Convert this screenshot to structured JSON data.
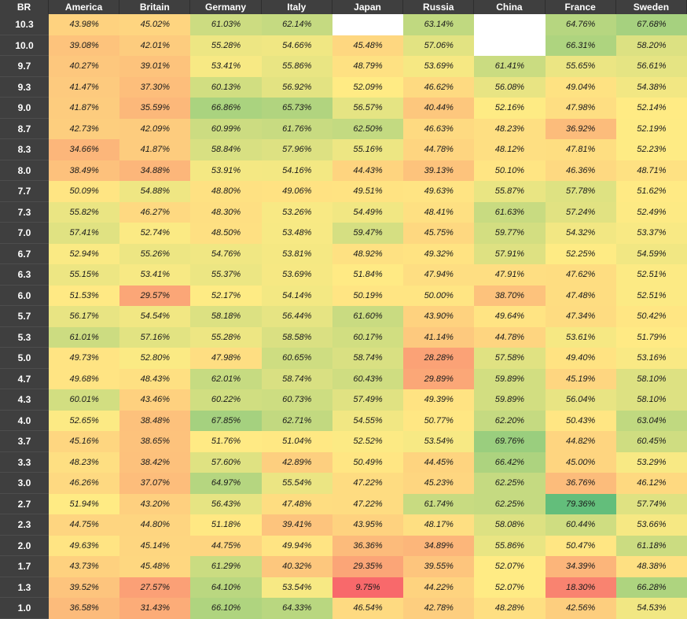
{
  "chart_data": {
    "type": "heatmap",
    "corner_label": "BR",
    "columns": [
      "America",
      "Britain",
      "Germany",
      "Italy",
      "Japan",
      "Russia",
      "China",
      "France",
      "Sweden"
    ],
    "rows": [
      "10.3",
      "10.0",
      "9.7",
      "9.3",
      "9.0",
      "8.7",
      "8.3",
      "8.0",
      "7.7",
      "7.3",
      "7.0",
      "6.7",
      "6.3",
      "6.0",
      "5.7",
      "5.3",
      "5.0",
      "4.7",
      "4.3",
      "4.0",
      "3.7",
      "3.3",
      "3.0",
      "2.7",
      "2.3",
      "2.0",
      "1.7",
      "1.3",
      "1.0"
    ],
    "values": [
      [
        43.98,
        45.02,
        61.03,
        62.14,
        null,
        63.14,
        null,
        64.76,
        67.68
      ],
      [
        39.08,
        42.01,
        55.28,
        54.66,
        45.48,
        57.06,
        null,
        66.31,
        58.2
      ],
      [
        40.27,
        39.01,
        53.41,
        55.86,
        48.79,
        53.69,
        61.41,
        55.65,
        56.61
      ],
      [
        41.47,
        37.3,
        60.13,
        56.92,
        52.09,
        46.62,
        56.08,
        49.04,
        54.38
      ],
      [
        41.87,
        35.59,
        66.86,
        65.73,
        56.57,
        40.44,
        52.16,
        47.98,
        52.14
      ],
      [
        42.73,
        42.09,
        60.99,
        61.76,
        62.5,
        46.63,
        48.23,
        36.92,
        52.19
      ],
      [
        34.66,
        41.87,
        58.84,
        57.96,
        55.16,
        44.78,
        48.12,
        47.81,
        52.23
      ],
      [
        38.49,
        34.88,
        53.91,
        54.16,
        44.43,
        39.13,
        50.1,
        46.36,
        48.71
      ],
      [
        50.09,
        54.88,
        48.8,
        49.06,
        49.51,
        49.63,
        55.87,
        57.78,
        51.62
      ],
      [
        55.82,
        46.27,
        48.3,
        53.26,
        54.49,
        48.41,
        61.63,
        57.24,
        52.49
      ],
      [
        57.41,
        52.74,
        48.5,
        53.48,
        59.47,
        45.75,
        59.77,
        54.32,
        53.37
      ],
      [
        52.94,
        55.26,
        54.76,
        53.81,
        48.92,
        49.32,
        57.91,
        52.25,
        54.59
      ],
      [
        55.15,
        53.41,
        55.37,
        53.69,
        51.84,
        47.94,
        47.91,
        47.62,
        52.51
      ],
      [
        51.53,
        29.57,
        52.17,
        54.14,
        50.19,
        50.0,
        38.7,
        47.48,
        52.51
      ],
      [
        56.17,
        54.54,
        58.18,
        56.44,
        61.6,
        43.9,
        49.64,
        47.34,
        50.42
      ],
      [
        61.01,
        57.16,
        55.28,
        58.58,
        60.17,
        41.14,
        44.78,
        53.61,
        51.79
      ],
      [
        49.73,
        52.8,
        47.98,
        60.65,
        58.74,
        28.28,
        57.58,
        49.4,
        53.16
      ],
      [
        49.68,
        48.43,
        62.01,
        58.74,
        60.43,
        29.89,
        59.89,
        45.19,
        58.1
      ],
      [
        60.01,
        43.46,
        60.22,
        60.73,
        57.49,
        49.39,
        59.89,
        56.04,
        58.1
      ],
      [
        52.65,
        38.48,
        67.85,
        62.71,
        54.55,
        50.77,
        62.2,
        50.43,
        63.04
      ],
      [
        45.16,
        38.65,
        51.76,
        51.04,
        52.52,
        53.54,
        69.76,
        44.82,
        60.45
      ],
      [
        48.23,
        38.42,
        57.6,
        42.89,
        50.49,
        44.45,
        66.42,
        45.0,
        53.29
      ],
      [
        46.26,
        37.07,
        64.97,
        55.54,
        47.22,
        45.23,
        62.25,
        36.76,
        46.12
      ],
      [
        51.94,
        43.2,
        56.43,
        47.48,
        47.22,
        61.74,
        62.25,
        79.36,
        57.74
      ],
      [
        44.75,
        44.8,
        51.18,
        39.41,
        43.95,
        48.17,
        58.08,
        60.44,
        53.66
      ],
      [
        49.63,
        45.14,
        44.75,
        49.94,
        36.36,
        34.89,
        55.86,
        50.47,
        61.18
      ],
      [
        43.73,
        45.48,
        61.29,
        40.32,
        29.35,
        39.55,
        52.07,
        34.39,
        48.38
      ],
      [
        39.52,
        27.57,
        64.1,
        53.54,
        9.75,
        44.22,
        52.07,
        18.3,
        66.28
      ],
      [
        36.58,
        31.43,
        66.1,
        64.33,
        46.54,
        42.78,
        48.28,
        42.56,
        54.53
      ]
    ],
    "value_suffix": "%",
    "color_scale": {
      "low": "#f8696b",
      "mid": "#ffeb84",
      "high": "#63be7b",
      "missing": "#ffffff"
    },
    "header_background": "#3f3f3f"
  }
}
